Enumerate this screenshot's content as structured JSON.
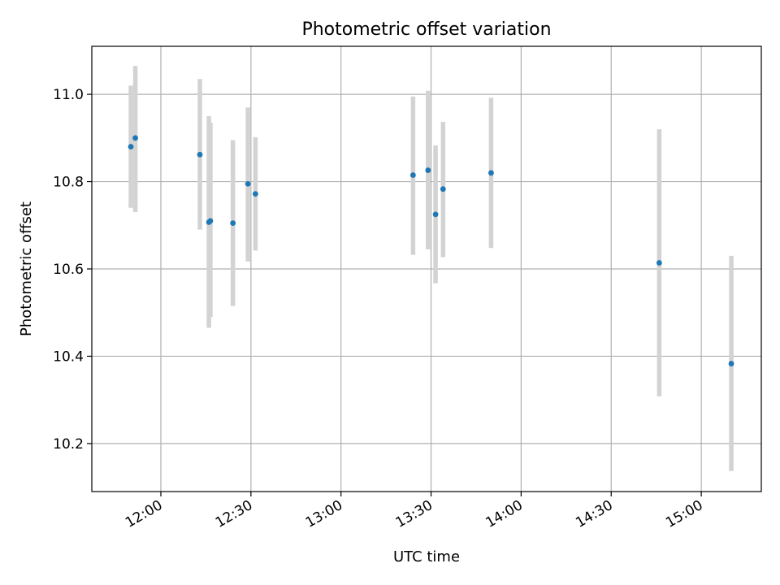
{
  "chart_data": {
    "type": "scatter",
    "title": "Photometric offset variation",
    "xlabel": "UTC time",
    "ylabel": "Photometric offset",
    "x_axis_type": "time",
    "xlim": [
      "11:37",
      "15:20"
    ],
    "ylim": [
      10.09,
      11.11
    ],
    "x_ticks": [
      "12:00",
      "12:30",
      "13:00",
      "13:30",
      "14:00",
      "14:30",
      "15:00"
    ],
    "y_ticks": [
      10.2,
      10.4,
      10.6,
      10.8,
      11.0
    ],
    "y_tick_labels": [
      "10.2",
      "10.4",
      "10.6",
      "10.8",
      "11.0"
    ],
    "grid": true,
    "marker_color": "#1f77b4",
    "errorbar_color": "#d3d3d3",
    "points": [
      {
        "x": "11:50",
        "y": 10.88,
        "ymin": 10.74,
        "ymax": 11.02
      },
      {
        "x": "11:51.5",
        "y": 10.9,
        "ymin": 10.73,
        "ymax": 11.065
      },
      {
        "x": "12:13",
        "y": 10.862,
        "ymin": 10.69,
        "ymax": 11.035
      },
      {
        "x": "12:16",
        "y": 10.707,
        "ymin": 10.465,
        "ymax": 10.95
      },
      {
        "x": "12:16.5",
        "y": 10.71,
        "ymin": 10.49,
        "ymax": 10.935
      },
      {
        "x": "12:24",
        "y": 10.705,
        "ymin": 10.515,
        "ymax": 10.895
      },
      {
        "x": "12:29",
        "y": 10.795,
        "ymin": 10.617,
        "ymax": 10.97
      },
      {
        "x": "12:31.5",
        "y": 10.772,
        "ymin": 10.642,
        "ymax": 10.902
      },
      {
        "x": "13:24",
        "y": 10.815,
        "ymin": 10.632,
        "ymax": 10.995
      },
      {
        "x": "13:29",
        "y": 10.826,
        "ymin": 10.645,
        "ymax": 11.008
      },
      {
        "x": "13:31.5",
        "y": 10.725,
        "ymin": 10.567,
        "ymax": 10.883
      },
      {
        "x": "13:34",
        "y": 10.783,
        "ymin": 10.627,
        "ymax": 10.937
      },
      {
        "x": "13:50",
        "y": 10.82,
        "ymin": 10.648,
        "ymax": 10.992
      },
      {
        "x": "14:46",
        "y": 10.614,
        "ymin": 10.308,
        "ymax": 10.92
      },
      {
        "x": "15:10",
        "y": 10.383,
        "ymin": 10.137,
        "ymax": 10.63
      }
    ]
  }
}
